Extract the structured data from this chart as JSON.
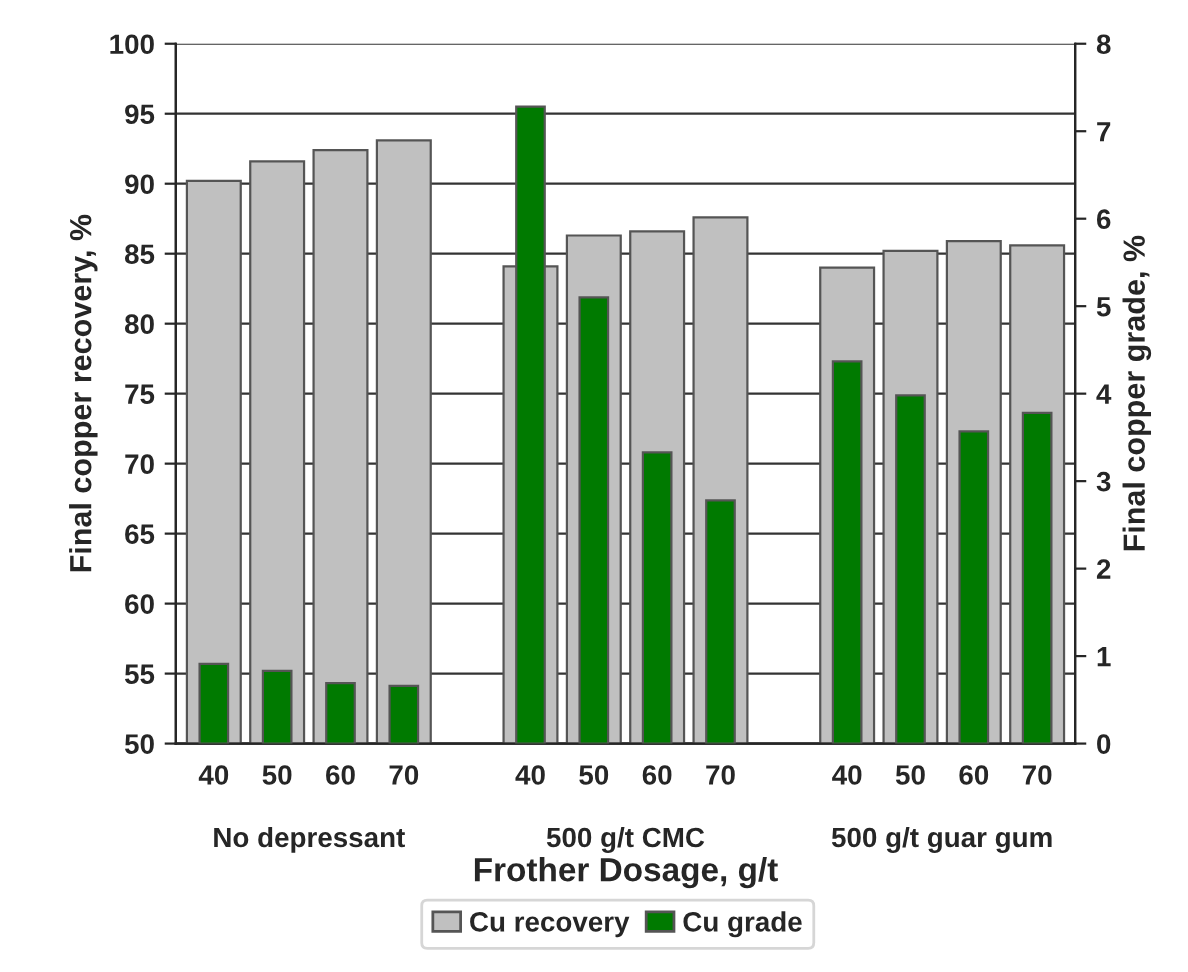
{
  "chart_data": {
    "type": "bar",
    "xlabel": "Frother Dosage, g/t",
    "ylabel": "Final copper recovery, %",
    "y2label": "Final copper grade, %",
    "categories": [
      "40",
      "50",
      "60",
      "70",
      null,
      "40",
      "50",
      "60",
      "70",
      null,
      "40",
      "50",
      "60",
      "70"
    ],
    "series": [
      {
        "name": "Cu recovery",
        "color": "#c0c0c0",
        "values": [
          90.2,
          91.6,
          92.4,
          93.1,
          null,
          84.1,
          86.3,
          86.6,
          87.6,
          null,
          84.0,
          85.2,
          85.9,
          85.6
        ]
      },
      {
        "name": "Cu grade",
        "color": "#007a00",
        "axis": "y2",
        "values": [
          0.91,
          0.83,
          0.69,
          0.66,
          null,
          7.28,
          5.1,
          3.33,
          2.78,
          null,
          4.37,
          3.98,
          3.57,
          3.78
        ]
      }
    ],
    "ylim": [
      50,
      100
    ],
    "yticks": [
      50,
      55,
      60,
      65,
      70,
      75,
      80,
      85,
      90,
      95,
      100
    ],
    "y2lim": [
      0,
      8
    ],
    "y2ticks": [
      0,
      1,
      2,
      3,
      4,
      5,
      6,
      7,
      8
    ],
    "annotations": [
      "No depressant",
      "500 g/t CMC",
      "500 g/t guar gum"
    ],
    "grid": "y",
    "legend": "bottom"
  }
}
